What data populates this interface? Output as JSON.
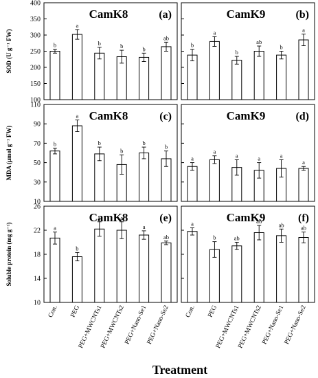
{
  "chart_data": {
    "type": "bar",
    "xlabel": "Treatment",
    "categories": [
      "Con.",
      "PEG",
      "PEG+MWCNTs1",
      "PEG+MWCNTs2",
      "PEG+Nano-Se1",
      "PEG+Nano-Se2"
    ],
    "rows": [
      {
        "ylabel": "SOD (U g⁻¹ FW)",
        "ylim": [
          100,
          400
        ],
        "yticks": [
          100,
          150,
          200,
          250,
          300,
          350,
          400
        ],
        "panels": [
          {
            "title": "CamK8",
            "label": "(a)",
            "values": [
              250,
              302,
              244,
              233,
              231,
              264
            ],
            "errors": [
              6,
              15,
              18,
              20,
              13,
              14
            ],
            "letters": [
              "b",
              "a",
              "b",
              "b",
              "b",
              "ab"
            ]
          },
          {
            "title": "CamK9",
            "label": "(b)",
            "values": [
              238,
              280,
              222,
              250,
              238,
              285
            ],
            "errors": [
              18,
              15,
              12,
              16,
              12,
              18
            ],
            "letters": [
              "b",
              "a",
              "b",
              "ab",
              "b",
              "a"
            ]
          }
        ]
      },
      {
        "ylabel": "MDA (μmol g⁻¹ FW)",
        "ylim": [
          10,
          110
        ],
        "yticks": [
          10,
          30,
          50,
          70,
          90,
          110
        ],
        "ytick_labels": [
          "10",
          "30",
          "50",
          "70",
          "90",
          "110"
        ],
        "panels": [
          {
            "title": "CamK8",
            "label": "(c)",
            "values": [
              62,
              88,
              59,
              48,
              60,
              54
            ],
            "errors": [
              3,
              6,
              7,
              10,
              6,
              8
            ],
            "letters": [
              "b",
              "a",
              "b",
              "b",
              "b",
              "b"
            ]
          },
          {
            "title": "CamK9",
            "label": "(d)",
            "values": [
              46,
              53,
              45,
              42,
              44,
              44
            ],
            "errors": [
              4,
              4,
              8,
              8,
              9,
              2
            ],
            "letters": [
              "a",
              "a",
              "a",
              "a",
              "a",
              "a"
            ]
          }
        ]
      },
      {
        "ylabel": "Soluble protein (mg g⁻¹)",
        "ylim": [
          10,
          26
        ],
        "yticks": [
          10,
          14,
          18,
          22,
          26
        ],
        "panels": [
          {
            "title": "CamK8",
            "label": "(e)",
            "values": [
              20.7,
              17.6,
              22.2,
              22.0,
              21.2,
              19.9
            ],
            "errors": [
              1.0,
              0.7,
              1.2,
              1.4,
              0.7,
              0.3
            ],
            "letters": [
              "a",
              "b",
              "a",
              "a",
              "a",
              "ab"
            ]
          },
          {
            "title": "CamK9",
            "label": "(f)",
            "values": [
              21.8,
              18.8,
              19.4,
              21.6,
              21.1,
              20.8
            ],
            "errors": [
              0.6,
              1.3,
              0.6,
              1.2,
              1.1,
              0.9
            ],
            "letters": [
              "a",
              "b",
              "ab",
              "ab",
              "ab",
              "ab"
            ]
          }
        ]
      }
    ]
  }
}
